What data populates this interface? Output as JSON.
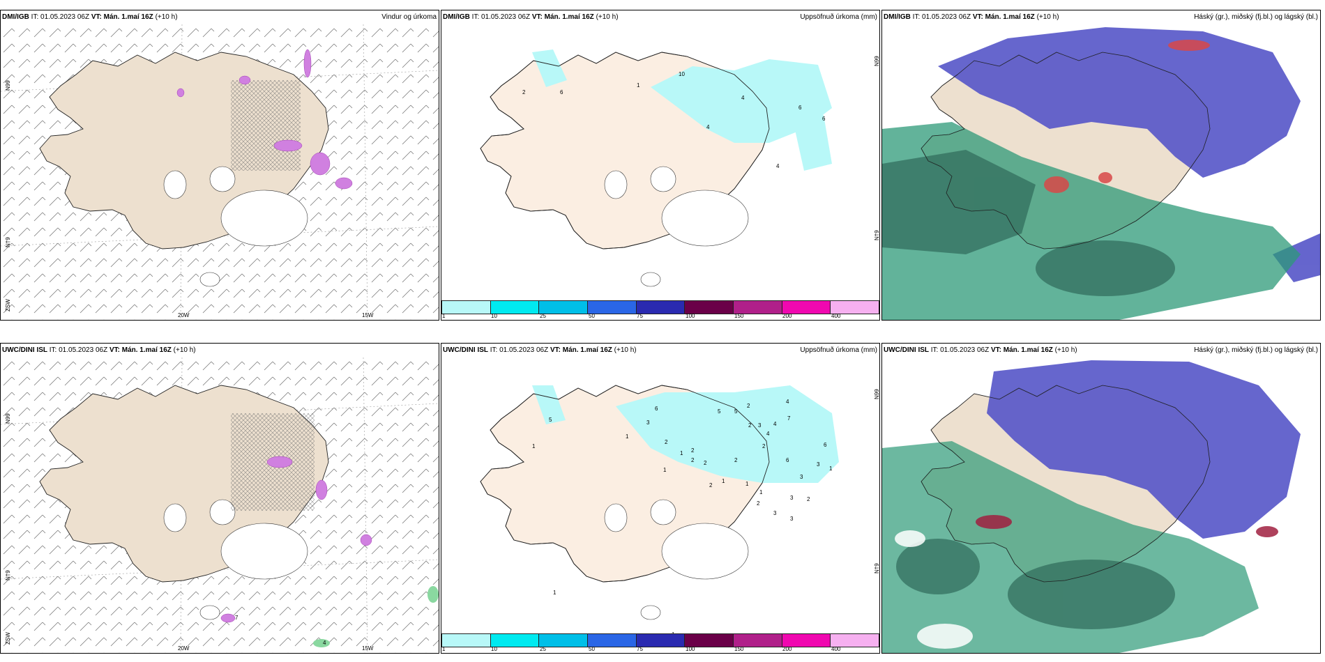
{
  "colors": {
    "land": "#ede0cf",
    "land_pale": "#fbeee2",
    "glacier": "#ffffff",
    "precip_cyan": "#b8f8f8",
    "cloud_high": "#5555c8",
    "cloud_mid": "#2e9a78",
    "cloud_low": "#2f6a5a",
    "precip_pink": "#d080e0"
  },
  "colorbar": {
    "labels": [
      "1",
      "10",
      "25",
      "50",
      "75",
      "100",
      "150",
      "200",
      "400"
    ],
    "colors": [
      "#b8f8f8",
      "#00eaf0",
      "#00bfe8",
      "#2a66e6",
      "#2a2ab0",
      "#6a0048",
      "#b0208a",
      "#f008b0",
      "#f6b0f0"
    ]
  },
  "panels": [
    {
      "model": "DMI/IGB",
      "it": "IT: 01.05.2023 06Z",
      "vt": "VT: Mán. 1.maí 16Z",
      "lead": "(+10 h)",
      "product": "Vindur og úrkoma",
      "axis_labels": [
        "N99",
        "N†9",
        "ZSW",
        "20W",
        "15W"
      ]
    },
    {
      "model": "DMI/IGB",
      "it": "IT: 01.05.2023 06Z",
      "vt": "VT: Mán. 1.maí 16Z",
      "lead": "(+10 h)",
      "product": "Uppsöfnuð úrkoma (mm)",
      "axis_labels": [
        "N99",
        "N†9"
      ],
      "values": [
        "2",
        "6",
        "10",
        "1",
        "4",
        "4",
        "6",
        "6",
        "4"
      ]
    },
    {
      "model": "DMI/IGB",
      "it": "IT: 01.05.2023 06Z",
      "vt": "VT: Mán. 1.maí 16Z",
      "lead": "(+10 h)",
      "product": "Háský (gr.), miðský (fj.bl.) og lágský (bl.)"
    },
    {
      "model": "UWC/DINI ISL",
      "it": "IT: 01.05.2023 06Z",
      "vt": "VT: Mán. 1.maí 16Z",
      "lead": "(+10 h)",
      "product": "",
      "axis_labels": [
        "N99",
        "N†9",
        "ZSW",
        "20W",
        "15W"
      ],
      "values": [
        "7",
        "4"
      ]
    },
    {
      "model": "UWC/DINI ISL",
      "it": "IT: 01.05.2023 06Z",
      "vt": "VT: Mán. 1.maí 16Z",
      "lead": "(+10 h)",
      "product": "Uppsöfnuð úrkoma (mm)",
      "axis_labels": [
        "N99",
        "N†9"
      ],
      "values": [
        "5",
        "1",
        "1",
        "6",
        "3",
        "5",
        "2",
        "1",
        "2",
        "2",
        "2",
        "1",
        "1",
        "2",
        "2",
        "1",
        "1",
        "2",
        "3",
        "5",
        "2",
        "3",
        "4",
        "7",
        "4",
        "2",
        "2",
        "3",
        "1",
        "1",
        "1",
        "3",
        "2",
        "6",
        "6",
        "3",
        "1",
        "3",
        "4"
      ]
    },
    {
      "model": "UWC/DINI ISL",
      "it": "IT: 01.05.2023 06Z",
      "vt": "VT: Mán. 1.maí 16Z",
      "lead": "(+10 h)",
      "product": "Háský (gr.), miðský (fj.bl.) og lágský (bl.)"
    }
  ]
}
